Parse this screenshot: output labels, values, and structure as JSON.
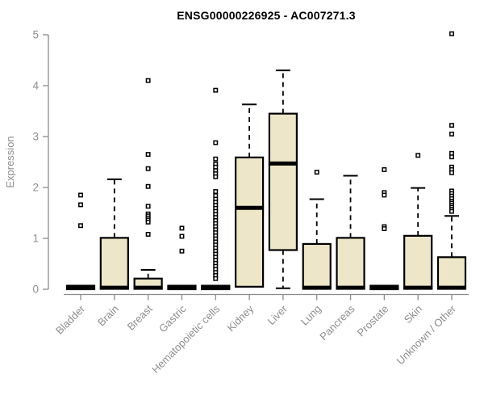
{
  "title": "ENSG00000226925 - AC007271.3",
  "chart_data": {
    "type": "boxplot",
    "title": "ENSG00000226925 - AC007271.3",
    "xlabel": "",
    "ylabel": "Expression",
    "ylim": [
      0,
      5
    ],
    "yticks": [
      0,
      1,
      2,
      3,
      4,
      5
    ],
    "grid": false,
    "legend": false,
    "categories": [
      "Bladder",
      "Brain",
      "Breast",
      "Gastric",
      "Hematopoietic cells",
      "Kidney",
      "Liver",
      "Lung",
      "Pancreas",
      "Prostate",
      "Skin",
      "Unknown / Other"
    ],
    "boxes": [
      {
        "category": "Bladder",
        "whisker_low": 0,
        "q1": 0,
        "median": 0.035,
        "q3": 0.07,
        "whisker_high": 0.07,
        "outliers": [
          1.85,
          1.66,
          1.25
        ]
      },
      {
        "category": "Brain",
        "whisker_low": 0,
        "q1": 0.01,
        "median": 0.03,
        "q3": 1.01,
        "whisker_high": 2.16,
        "outliers": []
      },
      {
        "category": "Breast",
        "whisker_low": 0,
        "q1": 0.01,
        "median": 0.03,
        "q3": 0.21,
        "whisker_high": 0.38,
        "outliers": [
          4.1,
          2.65,
          2.37,
          2.02,
          1.63,
          1.48,
          1.44,
          1.4,
          1.36,
          1.32,
          1.08
        ]
      },
      {
        "category": "Gastric",
        "whisker_low": 0,
        "q1": 0,
        "median": 0.035,
        "q3": 0.07,
        "whisker_high": 0.07,
        "outliers": [
          1.2,
          1.04,
          0.75
        ]
      },
      {
        "category": "Hematopoietic cells",
        "whisker_low": 0,
        "q1": 0,
        "median": 0.035,
        "q3": 0.07,
        "whisker_high": 0.07,
        "outliers": [
          3.91,
          2.88,
          2.56,
          2.46,
          2.4,
          2.33,
          2.27,
          2.21,
          1.92,
          1.84,
          1.77,
          1.71,
          1.65,
          1.59,
          1.53,
          1.47,
          1.41,
          1.35,
          1.29,
          1.23,
          1.17,
          1.11,
          1.05,
          0.99,
          0.93,
          0.87,
          0.81,
          0.75,
          0.69,
          0.63,
          0.57,
          0.51,
          0.45,
          0.39,
          0.33,
          0.27,
          0.21
        ]
      },
      {
        "category": "Kidney",
        "whisker_low": 0.05,
        "q1": 0.05,
        "median": 1.6,
        "q3": 2.59,
        "whisker_high": 3.63,
        "outliers": []
      },
      {
        "category": "Liver",
        "whisker_low": 0.02,
        "q1": 0.77,
        "median": 2.47,
        "q3": 3.45,
        "whisker_high": 4.3,
        "outliers": []
      },
      {
        "category": "Lung",
        "whisker_low": 0,
        "q1": 0.01,
        "median": 0.03,
        "q3": 0.89,
        "whisker_high": 1.77,
        "outliers": [
          2.3
        ]
      },
      {
        "category": "Pancreas",
        "whisker_low": 0,
        "q1": 0.01,
        "median": 0.03,
        "q3": 1.01,
        "whisker_high": 2.23,
        "outliers": []
      },
      {
        "category": "Prostate",
        "whisker_low": 0,
        "q1": 0,
        "median": 0.035,
        "q3": 0.07,
        "whisker_high": 0.07,
        "outliers": [
          2.35,
          1.9,
          1.85,
          1.23,
          1.19
        ]
      },
      {
        "category": "Skin",
        "whisker_low": 0,
        "q1": 0.01,
        "median": 0.03,
        "q3": 1.05,
        "whisker_high": 1.99,
        "outliers": [
          2.63
        ]
      },
      {
        "category": "Unknown / Other",
        "whisker_low": 0,
        "q1": 0.01,
        "median": 0.03,
        "q3": 0.63,
        "whisker_high": 1.44,
        "outliers": [
          5.02,
          3.22,
          3.05,
          2.67,
          2.6,
          2.4,
          2.35,
          2.29,
          1.93,
          1.88,
          1.83,
          1.78,
          1.73,
          1.69,
          1.65,
          1.61,
          1.57,
          1.53
        ]
      }
    ],
    "colors": {
      "box_fill": "#EDE6C8",
      "box_stroke": "#000000",
      "median": "#000000",
      "whisker": "#000000",
      "outlier_stroke": "#000000",
      "outlier_fill": "#FFFFFF",
      "axis": "#8B8B8B",
      "tick_label": "#8E8E8E",
      "title": "#000000",
      "background": "#FFFFFF"
    }
  }
}
